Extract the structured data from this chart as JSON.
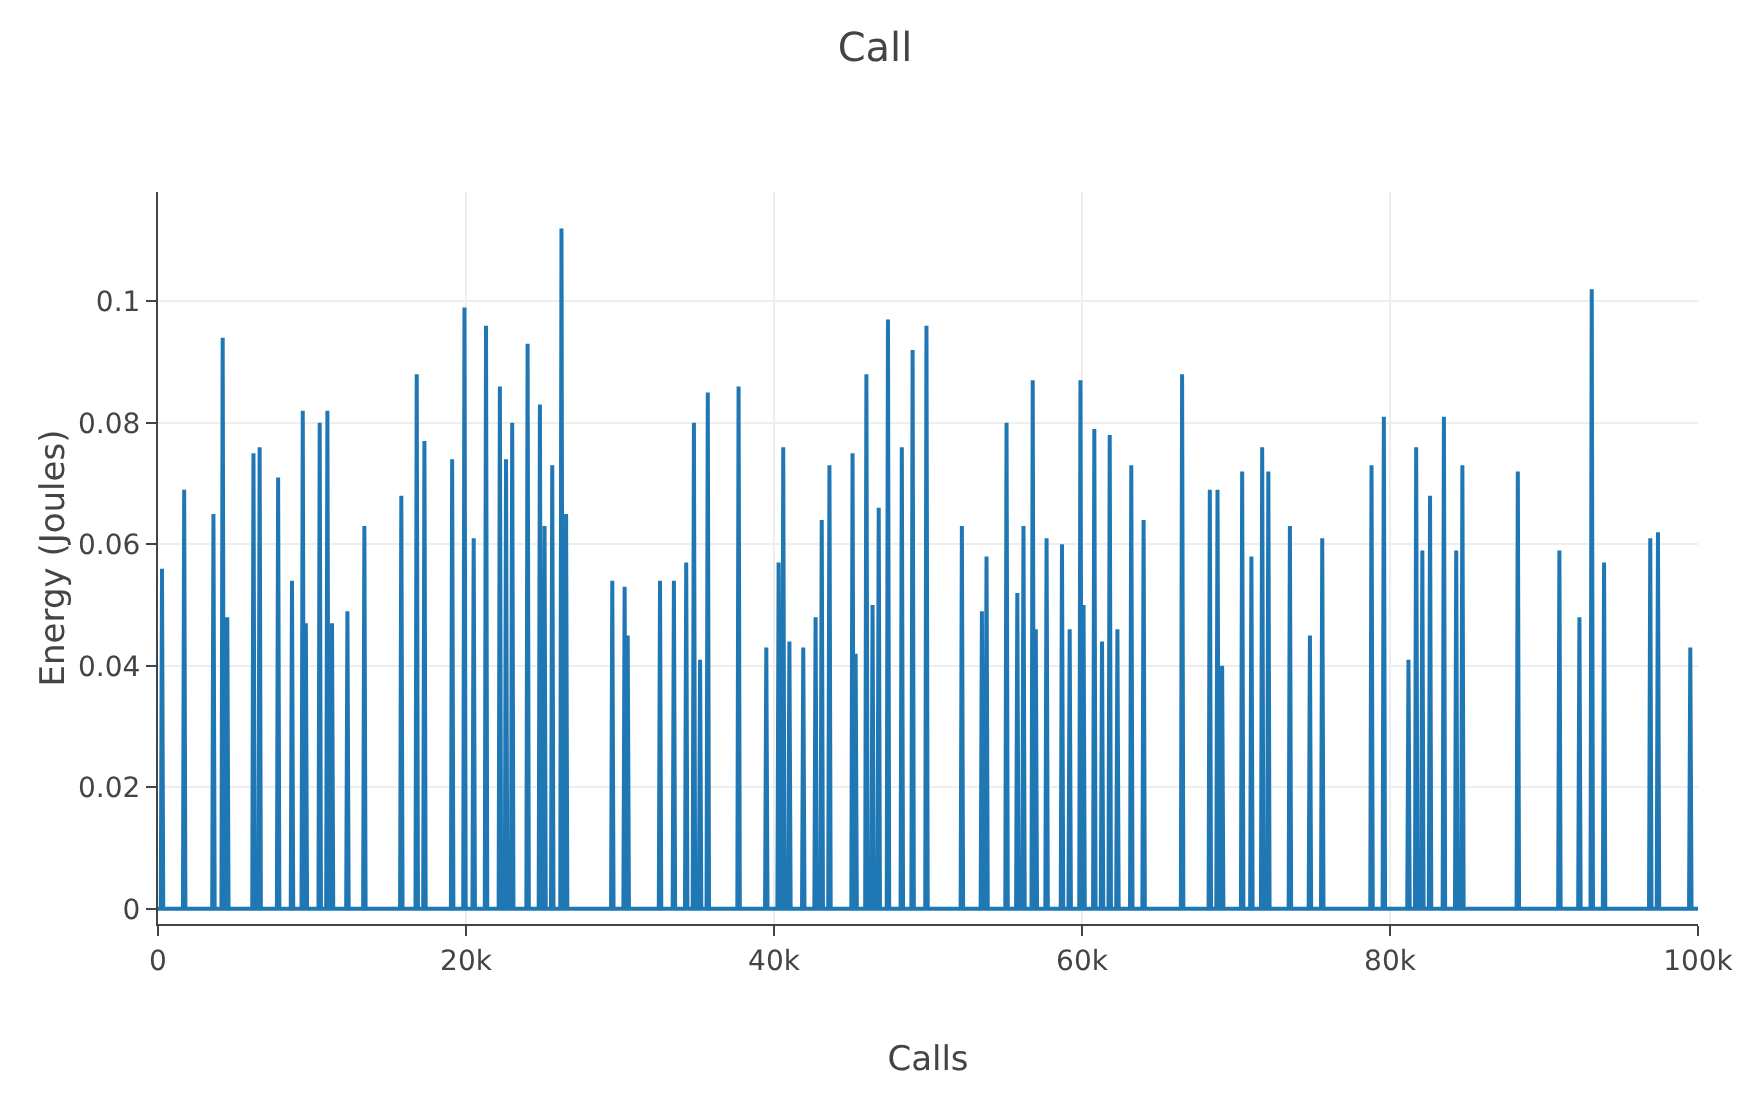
{
  "chart_data": {
    "type": "line",
    "title": "Call",
    "xlabel": "Calls",
    "ylabel": "Energy (Joules)",
    "xlim": [
      0,
      100000
    ],
    "ylim": [
      -0.0025,
      0.118
    ],
    "xticks": [
      0,
      {
        "value": 20000,
        "label": "20k"
      },
      {
        "value": 40000,
        "label": "40k"
      },
      {
        "value": 60000,
        "label": "60k"
      },
      {
        "value": 80000,
        "label": "80k"
      },
      {
        "value": 100000,
        "label": "100k"
      }
    ],
    "yticks": [
      0,
      0.02,
      0.04,
      0.06,
      0.08,
      0.1
    ],
    "grid": true,
    "marker": "none",
    "line_style": "solid",
    "series": [
      {
        "color": "#1f77b4",
        "x": [
          0,
          180,
          260,
          340,
          1620,
          1700,
          1780,
          3520,
          3600,
          3680,
          4120,
          4200,
          4280,
          4420,
          4500,
          4580,
          6120,
          6200,
          6280,
          6520,
          6600,
          6680,
          7720,
          7800,
          7880,
          8620,
          8700,
          8780,
          9320,
          9400,
          9480,
          9520,
          9600,
          9680,
          10420,
          10500,
          10580,
          10920,
          11000,
          11080,
          11220,
          11300,
          11380,
          12220,
          12300,
          12380,
          13320,
          13400,
          13480,
          15720,
          15800,
          15880,
          16720,
          16800,
          16880,
          17220,
          17300,
          17380,
          19020,
          19100,
          19180,
          19820,
          19900,
          19980,
          20420,
          20500,
          20580,
          21220,
          21300,
          21380,
          22120,
          22200,
          22280,
          22520,
          22600,
          22680,
          22920,
          23000,
          23080,
          23920,
          24000,
          24080,
          24720,
          24800,
          24880,
          25020,
          25100,
          25180,
          25520,
          25600,
          25680,
          26120,
          26200,
          26280,
          26420,
          26500,
          26580,
          29420,
          29500,
          29580,
          30220,
          30300,
          30380,
          30420,
          30500,
          30580,
          32520,
          32600,
          32680,
          33420,
          33500,
          33580,
          34220,
          34300,
          34380,
          34720,
          34800,
          34880,
          35120,
          35200,
          35280,
          35620,
          35700,
          35780,
          37620,
          37700,
          37780,
          39420,
          39500,
          39580,
          40220,
          40300,
          40380,
          40520,
          40600,
          40680,
          40920,
          41000,
          41080,
          41820,
          41900,
          41980,
          42620,
          42700,
          42780,
          43020,
          43100,
          43180,
          43520,
          43600,
          43680,
          45020,
          45100,
          45180,
          45220,
          45300,
          45380,
          45920,
          46000,
          46080,
          46320,
          46400,
          46480,
          46720,
          46800,
          46880,
          47320,
          47400,
          47480,
          48220,
          48300,
          48380,
          48920,
          49000,
          49080,
          49820,
          49900,
          49980,
          52120,
          52200,
          52280,
          53420,
          53500,
          53580,
          53720,
          53800,
          53880,
          55020,
          55100,
          55180,
          55720,
          55800,
          55880,
          56120,
          56200,
          56280,
          56720,
          56800,
          56880,
          56920,
          57000,
          57080,
          57620,
          57700,
          57780,
          58620,
          58700,
          58780,
          59120,
          59200,
          59280,
          59820,
          59900,
          59980,
          60020,
          60100,
          60180,
          60720,
          60800,
          60880,
          61220,
          61300,
          61380,
          61720,
          61800,
          61880,
          62220,
          62300,
          62380,
          63120,
          63200,
          63280,
          63920,
          64000,
          64080,
          66420,
          66500,
          66580,
          68220,
          68300,
          68380,
          68720,
          68800,
          68880,
          69020,
          69100,
          69180,
          70320,
          70400,
          70480,
          70920,
          71000,
          71080,
          71620,
          71700,
          71780,
          72020,
          72100,
          72180,
          73420,
          73500,
          73580,
          74720,
          74800,
          74880,
          75520,
          75600,
          75680,
          78720,
          78800,
          78880,
          79520,
          79600,
          79680,
          81120,
          81200,
          81280,
          81620,
          81700,
          81780,
          82020,
          82100,
          82180,
          82520,
          82600,
          82680,
          83420,
          83500,
          83580,
          84220,
          84300,
          84380,
          84620,
          84700,
          84780,
          88220,
          88300,
          88380,
          90920,
          91000,
          91080,
          92220,
          92300,
          92380,
          93020,
          93100,
          93180,
          93820,
          93900,
          93980,
          96820,
          96900,
          96980,
          97320,
          97400,
          97480,
          99420,
          99500,
          99580,
          100000
        ],
        "values": [
          0,
          0,
          0.056,
          0,
          0,
          0.069,
          0,
          0,
          0.065,
          0,
          0,
          0.094,
          0,
          0,
          0.048,
          0,
          0,
          0.075,
          0,
          0,
          0.076,
          0,
          0,
          0.071,
          0,
          0,
          0.054,
          0,
          0,
          0.082,
          0,
          0,
          0.047,
          0,
          0,
          0.08,
          0,
          0,
          0.082,
          0,
          0,
          0.047,
          0,
          0,
          0.049,
          0,
          0,
          0.063,
          0,
          0,
          0.068,
          0,
          0,
          0.088,
          0,
          0,
          0.077,
          0,
          0,
          0.074,
          0,
          0,
          0.099,
          0,
          0,
          0.061,
          0,
          0,
          0.096,
          0,
          0,
          0.086,
          0,
          0,
          0.074,
          0,
          0,
          0.08,
          0,
          0,
          0.093,
          0,
          0,
          0.083,
          0,
          0,
          0.063,
          0,
          0,
          0.073,
          0,
          0,
          0.112,
          0,
          0,
          0.065,
          0,
          0,
          0.054,
          0,
          0,
          0.053,
          0,
          0,
          0.045,
          0,
          0,
          0.054,
          0,
          0,
          0.054,
          0,
          0,
          0.057,
          0,
          0,
          0.08,
          0,
          0,
          0.041,
          0,
          0,
          0.085,
          0,
          0,
          0.086,
          0,
          0,
          0.043,
          0,
          0,
          0.057,
          0,
          0,
          0.076,
          0,
          0,
          0.044,
          0,
          0,
          0.043,
          0,
          0,
          0.048,
          0,
          0,
          0.064,
          0,
          0,
          0.073,
          0,
          0,
          0.075,
          0,
          0,
          0.042,
          0,
          0,
          0.088,
          0,
          0,
          0.05,
          0,
          0,
          0.066,
          0,
          0,
          0.097,
          0,
          0,
          0.076,
          0,
          0,
          0.092,
          0,
          0,
          0.096,
          0,
          0,
          0.063,
          0,
          0,
          0.049,
          0,
          0,
          0.058,
          0,
          0,
          0.08,
          0,
          0,
          0.052,
          0,
          0,
          0.063,
          0,
          0,
          0.087,
          0,
          0,
          0.046,
          0,
          0,
          0.061,
          0,
          0,
          0.06,
          0,
          0,
          0.046,
          0,
          0,
          0.087,
          0,
          0,
          0.05,
          0,
          0,
          0.079,
          0,
          0,
          0.044,
          0,
          0,
          0.078,
          0,
          0,
          0.046,
          0,
          0,
          0.073,
          0,
          0,
          0.064,
          0,
          0,
          0.088,
          0,
          0,
          0.069,
          0,
          0,
          0.069,
          0,
          0,
          0.04,
          0,
          0,
          0.072,
          0,
          0,
          0.058,
          0,
          0,
          0.076,
          0,
          0,
          0.072,
          0,
          0,
          0.063,
          0,
          0,
          0.045,
          0,
          0,
          0.061,
          0,
          0,
          0.073,
          0,
          0,
          0.081,
          0,
          0,
          0.041,
          0,
          0,
          0.076,
          0,
          0,
          0.059,
          0,
          0,
          0.068,
          0,
          0,
          0.081,
          0,
          0,
          0.059,
          0,
          0,
          0.073,
          0,
          0,
          0.072,
          0,
          0,
          0.059,
          0,
          0,
          0.048,
          0,
          0,
          0.102,
          0,
          0,
          0.057,
          0,
          0,
          0.061,
          0,
          0,
          0.062,
          0,
          0,
          0.043,
          0,
          0
        ]
      }
    ]
  }
}
